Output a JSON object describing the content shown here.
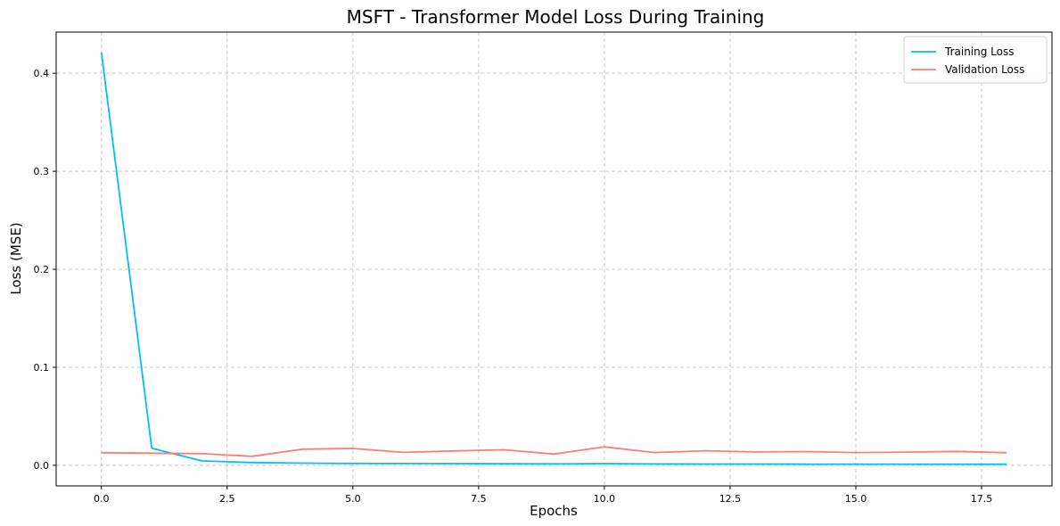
{
  "chart_data": {
    "type": "line",
    "title": "MSFT - Transformer Model Loss During Training",
    "xlabel": "Epochs",
    "ylabel": "Loss (MSE)",
    "xlim": [
      -0.9,
      18.9
    ],
    "ylim": [
      -0.021,
      0.442
    ],
    "xticks": [
      0.0,
      2.5,
      5.0,
      7.5,
      10.0,
      12.5,
      15.0,
      17.5
    ],
    "xtick_labels": [
      "0.0",
      "2.5",
      "5.0",
      "7.5",
      "10.0",
      "12.5",
      "15.0",
      "17.5"
    ],
    "yticks": [
      0.0,
      0.1,
      0.2,
      0.3,
      0.4
    ],
    "ytick_labels": [
      "0.0",
      "0.1",
      "0.2",
      "0.3",
      "0.4"
    ],
    "grid": true,
    "legend_position": "top-right",
    "x": [
      0,
      1,
      2,
      3,
      4,
      5,
      6,
      7,
      8,
      9,
      10,
      11,
      12,
      13,
      14,
      15,
      16,
      17,
      18
    ],
    "series": [
      {
        "name": "Training Loss",
        "color": "#00bfff",
        "values": [
          0.421,
          0.0175,
          0.0045,
          0.0028,
          0.0022,
          0.0019,
          0.0018,
          0.0017,
          0.0016,
          0.0015,
          0.0017,
          0.0014,
          0.0013,
          0.0013,
          0.0012,
          0.0012,
          0.0012,
          0.0011,
          0.0011
        ]
      },
      {
        "name": "Validation Loss",
        "color": "#fa8072",
        "values": [
          0.0128,
          0.0124,
          0.0118,
          0.0092,
          0.0165,
          0.0172,
          0.0132,
          0.0147,
          0.0158,
          0.0115,
          0.0188,
          0.013,
          0.0148,
          0.0137,
          0.014,
          0.013,
          0.0135,
          0.0142,
          0.0128
        ]
      }
    ]
  }
}
